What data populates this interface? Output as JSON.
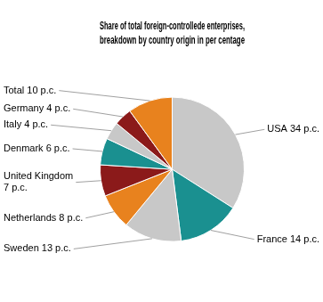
{
  "chart_data": {
    "type": "pie",
    "title": "Share of total foreign-controllede enterprises,\nbreakdown by country origin in per centage",
    "categories": [
      "USA 34 p.c.",
      "France 14 p.c.",
      "Sweden 13 p.c.",
      "Netherlands 8 p.c.",
      "United Kingdom\n7 p.c.",
      "Denmark 6 p.c.",
      "Italy 4 p.c.",
      "Germany 4 p.c.",
      "Total 10 p.c."
    ],
    "values": [
      34,
      14,
      13,
      8,
      7,
      6,
      4,
      4,
      10
    ],
    "colors": [
      "#c8c8c8",
      "#1a9090",
      "#c8c8c8",
      "#e8821e",
      "#8b1a1a",
      "#1a9090",
      "#c8c8c8",
      "#8b1a1a",
      "#e8821e"
    ]
  }
}
